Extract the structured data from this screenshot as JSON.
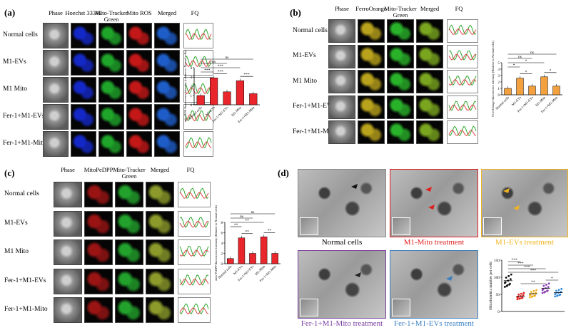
{
  "panels": {
    "a": {
      "label": "(a)",
      "headers": [
        "Phase",
        "Hoechst 33342",
        "Mito-Tracker Green",
        "Mito ROS",
        "Merged",
        "FQ"
      ],
      "rows": [
        "Normal cells",
        "M1-EVs",
        "M1 Mito",
        "Fer-1+M1-EVs",
        "Fer-1+M1-Mito"
      ],
      "palette": [
        "#7c7c7c",
        "#1428c8",
        "#1fa52a",
        "#c41818",
        "#1e5dc8"
      ]
    },
    "b": {
      "label": "(b)",
      "headers": [
        "Phase",
        "FerroOrange",
        "Mito-Tracker Green",
        "Merged",
        "FQ"
      ],
      "rows": [
        "Normal cells",
        "M1-EVs",
        "M1 Mito",
        "Fer-1+M1-EVs",
        "Fer-1+M1-Mito"
      ],
      "palette": [
        "#7c7c7c",
        "#b9a21c",
        "#29b12a",
        "#7aa51f"
      ]
    },
    "c": {
      "label": "(c)",
      "headers": [
        "Phase",
        "MitoPeDPP",
        "Mito-Tracker Green",
        "Merged",
        "FQ"
      ],
      "rows": [
        "Normal cells",
        "M1-EVs",
        "M1 Mito",
        "Fer-1+M1-EVs",
        "Fer-1+M1-Mito"
      ],
      "palette": [
        "#8a8a8a",
        "#9a1414",
        "#22a12c",
        "#8b9a2a"
      ]
    },
    "d": {
      "label": "(d)",
      "captions": [
        {
          "text": "Normal cells",
          "color": "#000000"
        },
        {
          "text": "M1-Mito treatment",
          "color": "#e0201f"
        },
        {
          "text": "M1-EVs treatment",
          "color": "#f0b422"
        },
        {
          "text": "Fer-1+M1-Mito treatment",
          "color": "#7b3fa0"
        },
        {
          "text": "Fer-1+M1-EVs treatment",
          "color": "#3a7fc0"
        }
      ]
    }
  },
  "chart_data": [
    {
      "type": "bar",
      "panel": "a",
      "ylabel": "mito ROS fluorescence intensity (relative to Normal cells)",
      "categories": [
        "Normal cells",
        "M1-EVs",
        "Fer-1+M1-EVs",
        "M1-Mito",
        "Fer-1+M1-Mito"
      ],
      "values": [
        1.0,
        2.9,
        1.4,
        2.6,
        1.2
      ],
      "ylim": [
        0,
        4
      ],
      "yticks": [
        "0",
        "1",
        "2",
        "3",
        "4"
      ],
      "significance": [
        "***",
        "***",
        "***",
        "***",
        "ns",
        "ns"
      ],
      "color": "#e8262b"
    },
    {
      "type": "bar",
      "panel": "b",
      "ylabel": "FerroOrange fluorescence intensity (Relative to Normal cells)",
      "categories": [
        "Normal cells",
        "M1-EVs",
        "Fer-1+M1-EVs",
        "M1-Mito",
        "Fer-1+M1-Mito"
      ],
      "values": [
        1.0,
        2.6,
        1.35,
        2.8,
        1.35
      ],
      "ylim": [
        0,
        5
      ],
      "yticks": [
        "0",
        "1",
        "2",
        "3",
        "4",
        "5"
      ],
      "significance": [
        "*",
        "*",
        "*",
        "*",
        "ns",
        "ns"
      ],
      "color": "#f3a03e"
    },
    {
      "type": "bar",
      "panel": "c",
      "ylabel": "mito-PeDPP fluorescence intensity (Relative to Normal cells)",
      "categories": [
        "Normal cells",
        "M1-EVs",
        "Fer-1+M1-EVs",
        "M1-Mito",
        "Fer-1+M1-Mito"
      ],
      "values": [
        1.0,
        5.0,
        2.0,
        5.2,
        2.0
      ],
      "ylim": [
        0,
        8
      ],
      "yticks": [
        "0",
        "2",
        "4",
        "6",
        "8"
      ],
      "significance": [
        "**",
        "**",
        "**",
        "**",
        "ns",
        "ns"
      ],
      "color": "#e8262b"
    },
    {
      "type": "scatter",
      "panel": "d",
      "ylabel": "Mitochondria number per cells",
      "categories": [
        "Normal cells",
        "M1-Mito",
        "M1-EVs",
        "Fer-1+M1-Mito",
        "Fer-1+M1-EVs"
      ],
      "means": [
        90,
        45,
        52,
        68,
        55
      ],
      "colors": [
        "#111111",
        "#e02020",
        "#f0b020",
        "#8a3fb0",
        "#3a8fd8"
      ],
      "ylim": [
        0,
        150
      ],
      "yticks": [
        "0",
        "50",
        "100",
        "150"
      ],
      "significance": [
        "***",
        "***",
        "***",
        "***",
        "*",
        "**"
      ]
    }
  ]
}
